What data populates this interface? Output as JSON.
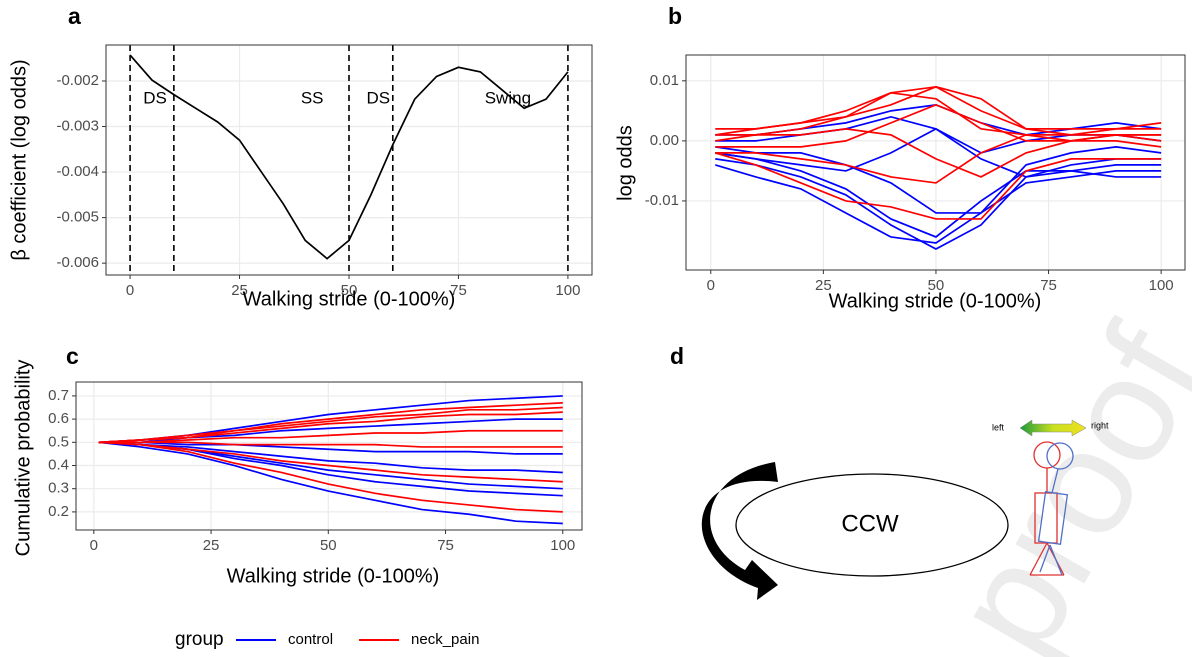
{
  "chart_data": [
    {
      "type": "line",
      "panel_label": "a",
      "x_label": "Walking stride (0-100%)",
      "y_label": "β coefficient (log odds)",
      "xlim": [
        -5.5,
        105.5
      ],
      "xticks": [
        0,
        25,
        50,
        75,
        100
      ],
      "ylim": [
        -0.00626,
        -0.00121
      ],
      "yticks": [
        -0.006,
        -0.005,
        -0.004,
        -0.003,
        -0.002
      ],
      "grid": true,
      "x": [
        0,
        5,
        10,
        15,
        20,
        25,
        30,
        35,
        40,
        45,
        50,
        55,
        60,
        65,
        70,
        75,
        80,
        85,
        90,
        95,
        100
      ],
      "series": [
        {
          "color": "#000000",
          "lines": [
            [
              -0.00143,
              -0.00198,
              -0.0023,
              -0.0026,
              -0.0029,
              -0.0033,
              -0.004,
              -0.0047,
              -0.0055,
              -0.0059,
              -0.0055,
              -0.0045,
              -0.0034,
              -0.0024,
              -0.0019,
              -0.0017,
              -0.0018,
              -0.0022,
              -0.0026,
              -0.0024,
              -0.0018
            ]
          ]
        }
      ],
      "vlines": [
        0,
        10,
        50,
        60,
        100
      ],
      "annotations": [
        "DS",
        "SS",
        "DS",
        "Swing"
      ]
    },
    {
      "type": "line",
      "panel_label": "b",
      "x_label": "Walking stride (0-100%)",
      "y_label": "log odds",
      "xlim": [
        -5.5,
        105.3
      ],
      "xticks": [
        0,
        25,
        50,
        75,
        100
      ],
      "ylim": [
        -0.0215,
        0.0143
      ],
      "yticks": [
        {
          "value": -0.01,
          "label": "-0.01"
        },
        {
          "value": 0,
          "label": "0.00"
        },
        0.01
      ],
      "grid": true,
      "x": [
        1,
        10,
        20,
        30,
        40,
        50,
        60,
        70,
        80,
        90,
        100
      ],
      "series": [
        {
          "name": "control",
          "color": "#0000ff",
          "lines": [
            [
              -0.004,
              -0.006,
              -0.008,
              -0.012,
              -0.016,
              -0.017,
              -0.012,
              -0.007,
              -0.006,
              -0.005,
              -0.005
            ],
            [
              -0.002,
              -0.003,
              -0.005,
              -0.008,
              -0.013,
              -0.016,
              -0.01,
              -0.005,
              -0.005,
              -0.004,
              -0.004
            ],
            [
              0.0,
              0.0,
              0.001,
              0.002,
              0.004,
              0.002,
              -0.002,
              0.0,
              0.001,
              0.001,
              0.0
            ],
            [
              -0.001,
              -0.002,
              -0.002,
              -0.004,
              -0.007,
              -0.012,
              -0.012,
              -0.004,
              -0.002,
              -0.001,
              -0.002
            ],
            [
              0.001,
              0.001,
              0.002,
              0.003,
              0.005,
              0.006,
              0.003,
              0.001,
              0.002,
              0.003,
              0.002
            ],
            [
              -0.002,
              -0.003,
              -0.004,
              -0.005,
              -0.002,
              0.002,
              -0.003,
              -0.006,
              -0.004,
              -0.003,
              -0.003
            ],
            [
              -0.003,
              -0.004,
              -0.006,
              -0.009,
              -0.014,
              -0.018,
              -0.014,
              -0.006,
              -0.005,
              -0.006,
              -0.006
            ]
          ]
        },
        {
          "name": "neck_pain",
          "color": "#ff0000",
          "lines": [
            [
              0.002,
              0.002,
              0.003,
              0.005,
              0.008,
              0.009,
              0.005,
              0.002,
              0.001,
              0.002,
              0.002
            ],
            [
              0.001,
              0.002,
              0.003,
              0.004,
              0.008,
              0.007,
              0.002,
              0.001,
              0.001,
              0.001,
              0.001
            ],
            [
              -0.001,
              -0.001,
              -0.001,
              0.0,
              0.003,
              0.006,
              0.003,
              0.0,
              0.0,
              0.001,
              0.001
            ],
            [
              -0.002,
              -0.004,
              -0.007,
              -0.01,
              -0.011,
              -0.013,
              -0.013,
              -0.005,
              -0.003,
              -0.003,
              -0.003
            ],
            [
              0.0,
              0.001,
              0.001,
              0.002,
              0.001,
              -0.003,
              -0.006,
              -0.002,
              0.0,
              0.001,
              0.0
            ],
            [
              0.001,
              0.001,
              0.002,
              0.004,
              0.006,
              0.009,
              0.007,
              0.002,
              0.002,
              0.002,
              0.003
            ],
            [
              -0.002,
              -0.002,
              -0.003,
              -0.004,
              -0.006,
              -0.007,
              -0.002,
              0.001,
              0.0,
              0.0,
              -0.001
            ]
          ]
        }
      ]
    },
    {
      "type": "line",
      "panel_label": "c",
      "x_label": "Walking stride (0-100%)",
      "y_label": "Cumulative probability",
      "xlim": [
        -3.8,
        104.1
      ],
      "xticks": [
        0,
        25,
        50,
        75,
        100
      ],
      "ylim": [
        0.122,
        0.76
      ],
      "yticks": [
        0.2,
        0.3,
        0.4,
        0.5,
        0.6,
        0.7
      ],
      "grid": true,
      "x": [
        1,
        10,
        20,
        30,
        40,
        50,
        60,
        70,
        80,
        90,
        100
      ],
      "legend_title": "group",
      "legend": "bottom",
      "series": [
        {
          "name": "control",
          "color": "#0000ff",
          "lines": [
            [
              0.5,
              0.48,
              0.45,
              0.4,
              0.34,
              0.29,
              0.25,
              0.21,
              0.19,
              0.16,
              0.15
            ],
            [
              0.5,
              0.49,
              0.47,
              0.43,
              0.4,
              0.36,
              0.33,
              0.31,
              0.29,
              0.28,
              0.27
            ],
            [
              0.5,
              0.49,
              0.47,
              0.44,
              0.41,
              0.38,
              0.36,
              0.34,
              0.32,
              0.31,
              0.3
            ],
            [
              0.5,
              0.49,
              0.48,
              0.46,
              0.44,
              0.42,
              0.41,
              0.39,
              0.38,
              0.38,
              0.37
            ],
            [
              0.5,
              0.5,
              0.49,
              0.49,
              0.48,
              0.47,
              0.46,
              0.46,
              0.46,
              0.45,
              0.45
            ],
            [
              0.5,
              0.5,
              0.52,
              0.53,
              0.55,
              0.56,
              0.57,
              0.58,
              0.59,
              0.6,
              0.6
            ],
            [
              0.5,
              0.51,
              0.53,
              0.56,
              0.59,
              0.62,
              0.64,
              0.66,
              0.68,
              0.69,
              0.7
            ]
          ]
        },
        {
          "name": "neck_pain",
          "color": "#ff0000",
          "lines": [
            [
              0.5,
              0.49,
              0.46,
              0.41,
              0.37,
              0.32,
              0.28,
              0.25,
              0.23,
              0.21,
              0.2
            ],
            [
              0.5,
              0.49,
              0.47,
              0.45,
              0.42,
              0.4,
              0.38,
              0.36,
              0.35,
              0.34,
              0.33
            ],
            [
              0.5,
              0.5,
              0.5,
              0.49,
              0.49,
              0.49,
              0.49,
              0.48,
              0.48,
              0.48,
              0.48
            ],
            [
              0.5,
              0.5,
              0.51,
              0.52,
              0.52,
              0.53,
              0.54,
              0.54,
              0.55,
              0.55,
              0.55
            ],
            [
              0.5,
              0.51,
              0.52,
              0.54,
              0.56,
              0.58,
              0.59,
              0.61,
              0.62,
              0.62,
              0.63
            ],
            [
              0.5,
              0.51,
              0.53,
              0.55,
              0.58,
              0.6,
              0.62,
              0.64,
              0.65,
              0.66,
              0.67
            ],
            [
              0.5,
              0.51,
              0.52,
              0.55,
              0.57,
              0.59,
              0.61,
              0.62,
              0.64,
              0.64,
              0.65
            ]
          ]
        }
      ]
    }
  ],
  "diagram": {
    "panel_label": "d",
    "center": "CCW",
    "left": "left",
    "right": "right"
  },
  "watermark": "proof"
}
